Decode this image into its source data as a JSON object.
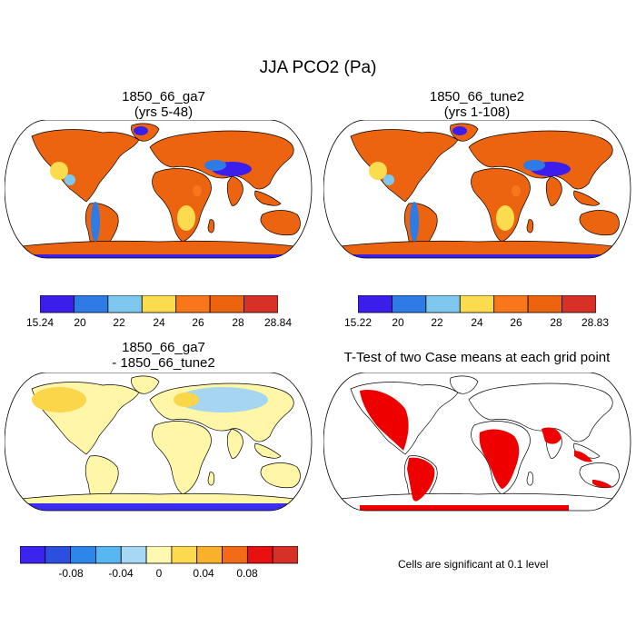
{
  "figure": {
    "main_title": "JJA PCO2 (Pa)",
    "panels": [
      {
        "id": "ga7",
        "title_line1": "1850_66_ga7",
        "title_line2": "(yrs 5-48)",
        "colorbar": {
          "labels": [
            "15.24",
            "20",
            "22",
            "24",
            "26",
            "28",
            "28.84"
          ],
          "colors": [
            "#3c1eec",
            "#2e7be6",
            "#7ec8ef",
            "#fadc4e",
            "#f9761a",
            "#ed6410",
            "#d73027"
          ]
        }
      },
      {
        "id": "tune2",
        "title_line1": "1850_66_tune2",
        "title_line2": "(yrs 1-108)",
        "colorbar": {
          "labels": [
            "15.22",
            "20",
            "22",
            "24",
            "26",
            "28",
            "28.83"
          ],
          "colors": [
            "#3c1eec",
            "#2e7be6",
            "#7ec8ef",
            "#fadc4e",
            "#f9761a",
            "#ed6410",
            "#d73027"
          ]
        }
      },
      {
        "id": "diff",
        "title_line1": "1850_66_ga7",
        "title_line2": "- 1850_66_tune2",
        "colorbar": {
          "labels": [
            "-0.08",
            "-0.04",
            "0",
            "0.04",
            "0.08"
          ],
          "colors": [
            "#3b24f0",
            "#2c4fe0",
            "#2f86ea",
            "#58b6f2",
            "#a7d8f3",
            "#fff8b0",
            "#fcd94e",
            "#f9b12c",
            "#f36b16",
            "#e81010",
            "#d73027"
          ]
        }
      },
      {
        "id": "ttest",
        "title_line1": "T-Test of two Case means at each grid point",
        "note": "Cells are significant at 0.1 level"
      }
    ]
  },
  "colors": {
    "ocean": "#ffffff",
    "coast": "#000000",
    "pco2_high": "#ed6410",
    "pco2_mid": "#fadc4e",
    "pco2_low": "#3c1eec",
    "diff_pos": "#fff6a8",
    "diff_pos2": "#fbd54a",
    "diff_neg": "#a6d5f1",
    "diff_antarctica": "#3a2ef0",
    "sig": "#ee0000"
  }
}
